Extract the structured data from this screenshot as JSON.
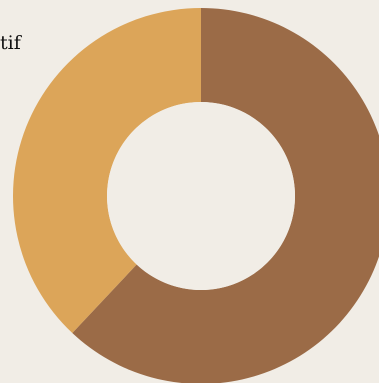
{
  "chart_data": {
    "type": "pie",
    "donut": true,
    "slices": [
      {
        "label": "",
        "value": 62,
        "color": "#9b6b47"
      },
      {
        "label": "",
        "value": 38,
        "color": "#dca559"
      }
    ],
    "visible_text": "tif",
    "background": "#f1ede6"
  }
}
